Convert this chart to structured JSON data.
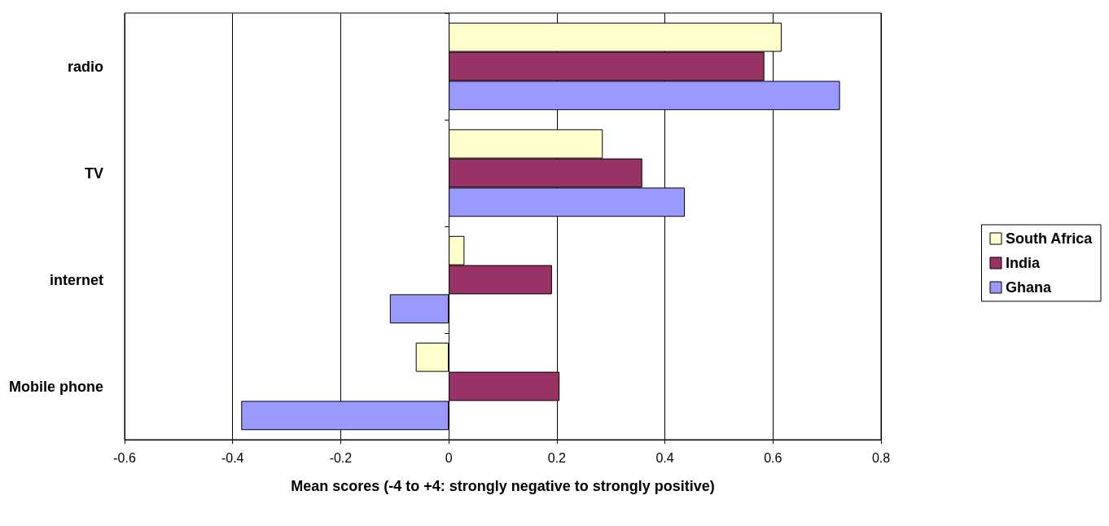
{
  "chart_data": {
    "type": "bar",
    "orientation": "horizontal",
    "xlabel": "Mean scores (-4 to +4: strongly negative to strongly positive)",
    "categories": [
      "radio",
      "TV",
      "internet",
      "Mobile phone"
    ],
    "series": [
      {
        "name": "South Africa",
        "color": "#ffffcc",
        "values": [
          0.616,
          0.285,
          0.029,
          -0.061
        ]
      },
      {
        "name": "India",
        "color": "#993366",
        "values": [
          0.584,
          0.358,
          0.191,
          0.205
        ]
      },
      {
        "name": "Ghana",
        "color": "#9999ff",
        "values": [
          0.724,
          0.437,
          -0.109,
          -0.384
        ]
      }
    ],
    "xlim": [
      -0.6,
      0.8
    ],
    "xticks": [
      -0.6,
      -0.4,
      -0.2,
      0,
      0.2,
      0.4,
      0.6,
      0.8
    ],
    "grid": "x",
    "legend": "right"
  }
}
